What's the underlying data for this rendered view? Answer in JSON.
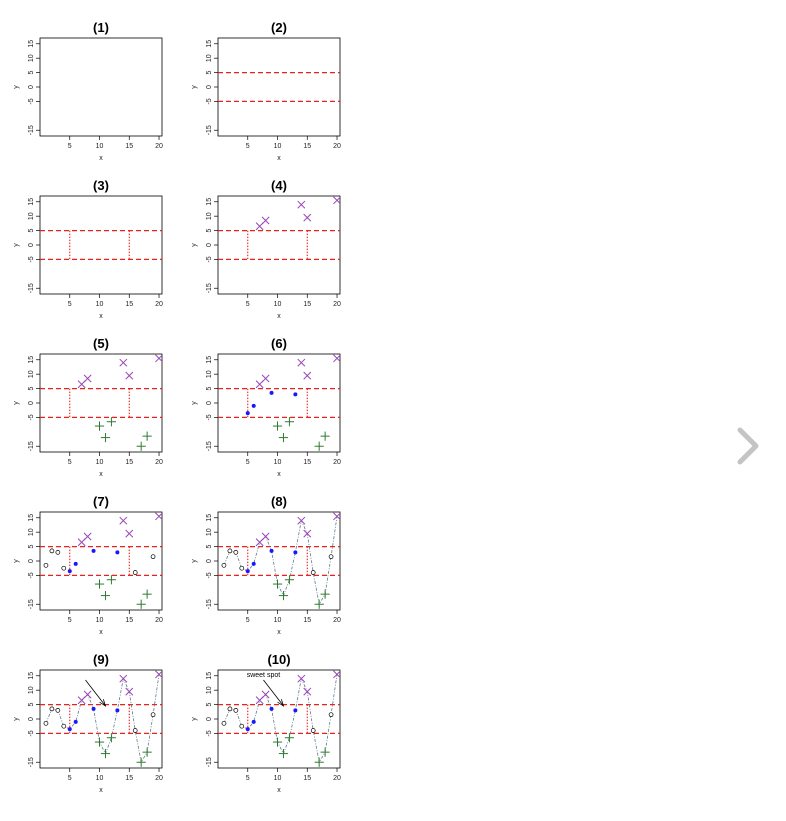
{
  "colors": {
    "threshold": "#e8231e",
    "high": "#9b45b8",
    "mid": "#1818ff",
    "low": "#2f7a2f",
    "other": "#000000",
    "path": "#5a7a8a",
    "nav_arrow": "#c4c4c4"
  },
  "icons": {
    "next": "chevron-right-icon"
  },
  "chart_data": {
    "type": "scatter",
    "layout": "small-multiples 5x2",
    "xlabel": "x",
    "ylabel": "y",
    "xlim": [
      0,
      20.5
    ],
    "ylim": [
      -17,
      17
    ],
    "xticks": [
      5,
      10,
      15,
      20
    ],
    "yticks": [
      -15,
      -5,
      0,
      5,
      10,
      15
    ],
    "grid": false,
    "thresholds": [
      5,
      -5
    ],
    "box": {
      "x": [
        5,
        15
      ],
      "y": [
        -5,
        5
      ]
    },
    "points": [
      {
        "x": 1,
        "y": -1.5,
        "group": "other"
      },
      {
        "x": 2,
        "y": 3.5,
        "group": "other"
      },
      {
        "x": 3,
        "y": 3,
        "group": "other"
      },
      {
        "x": 4,
        "y": -2.5,
        "group": "other"
      },
      {
        "x": 5,
        "y": -3.5,
        "group": "mid"
      },
      {
        "x": 6,
        "y": -1,
        "group": "mid"
      },
      {
        "x": 7,
        "y": 6.5,
        "group": "high"
      },
      {
        "x": 8,
        "y": 8.5,
        "group": "high"
      },
      {
        "x": 9,
        "y": 3.5,
        "group": "mid"
      },
      {
        "x": 10,
        "y": -8,
        "group": "low"
      },
      {
        "x": 11,
        "y": -12,
        "group": "low"
      },
      {
        "x": 12,
        "y": -6.5,
        "group": "low"
      },
      {
        "x": 13,
        "y": 3,
        "group": "mid"
      },
      {
        "x": 14,
        "y": 14,
        "group": "high"
      },
      {
        "x": 15,
        "y": 9.5,
        "group": "high"
      },
      {
        "x": 16,
        "y": -4,
        "group": "other"
      },
      {
        "x": 17,
        "y": -15,
        "group": "low"
      },
      {
        "x": 18,
        "y": -11.5,
        "group": "low"
      },
      {
        "x": 19,
        "y": 1.5,
        "group": "other"
      },
      {
        "x": 20,
        "y": 15.5,
        "group": "high"
      }
    ],
    "panels": [
      {
        "title": "(1)",
        "layers": []
      },
      {
        "title": "(2)",
        "layers": [
          "hlines"
        ]
      },
      {
        "title": "(3)",
        "layers": [
          "hlines",
          "vsegs"
        ]
      },
      {
        "title": "(4)",
        "layers": [
          "hlines",
          "vsegs",
          "high"
        ]
      },
      {
        "title": "(5)",
        "layers": [
          "hlines",
          "vsegs",
          "high",
          "low"
        ]
      },
      {
        "title": "(6)",
        "layers": [
          "hlines",
          "vsegs",
          "high",
          "low",
          "mid"
        ]
      },
      {
        "title": "(7)",
        "layers": [
          "hlines",
          "vsegs",
          "high",
          "low",
          "mid",
          "other"
        ]
      },
      {
        "title": "(8)",
        "layers": [
          "hlines",
          "vsegs",
          "high",
          "low",
          "mid",
          "other",
          "path"
        ]
      },
      {
        "title": "(9)",
        "layers": [
          "hlines",
          "vsegs",
          "high",
          "low",
          "mid",
          "other",
          "path",
          "arrow"
        ]
      },
      {
        "title": "(10)",
        "layers": [
          "hlines",
          "vsegs",
          "high",
          "low",
          "mid",
          "other",
          "path",
          "arrow",
          "label"
        ]
      }
    ],
    "annotation": {
      "text": "sweet spot",
      "target": {
        "x": 11,
        "y": 3.5
      }
    }
  }
}
